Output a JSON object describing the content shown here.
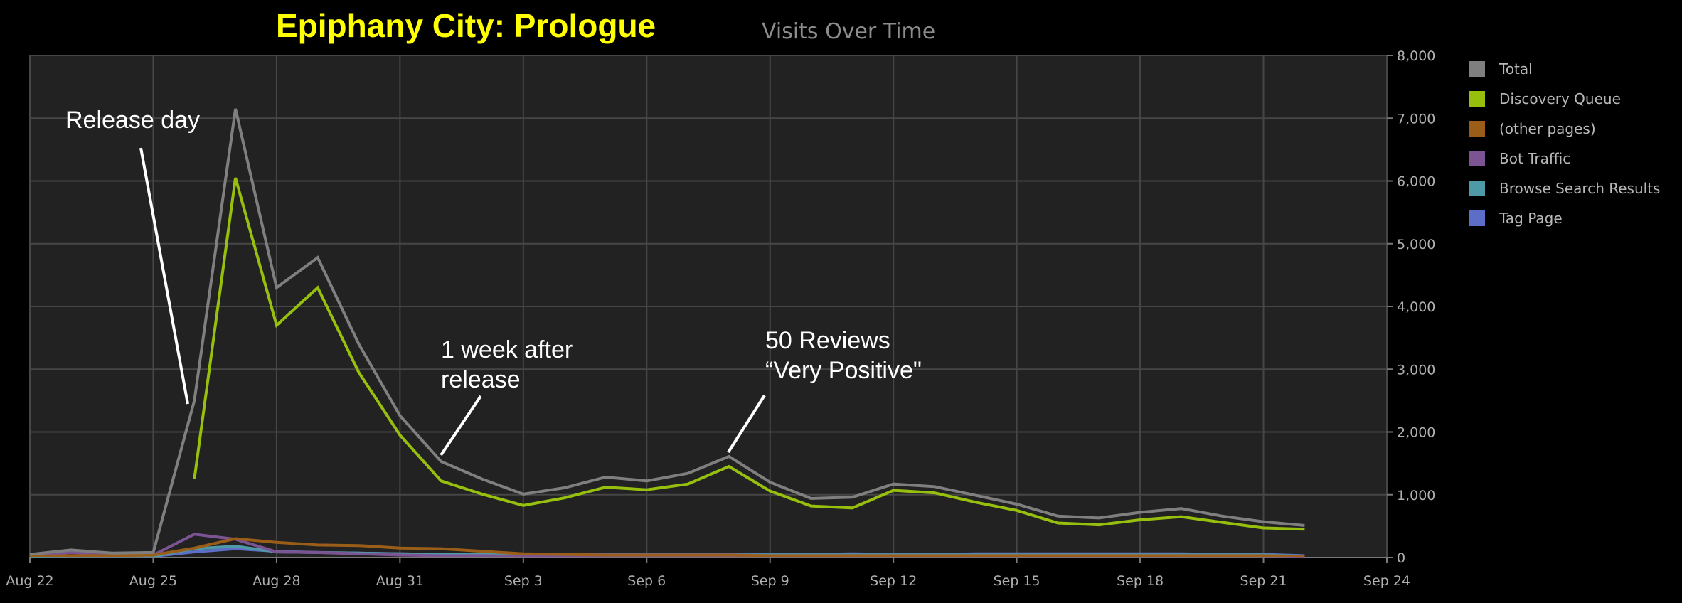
{
  "chart_data": {
    "type": "line",
    "title": "Epiphany City: Prologue",
    "subtitle": "Visits Over Time",
    "xlabel": "",
    "ylabel": "",
    "xlim": [
      "2014-08-22",
      "2014-09-24"
    ],
    "ylim": [
      0,
      8000
    ],
    "x_ticks": [
      "Aug 22",
      "Aug 25",
      "Aug 28",
      "Aug 31",
      "Sep 3",
      "Sep 6",
      "Sep 9",
      "Sep 12",
      "Sep 15",
      "Sep 18",
      "Sep 21",
      "Sep 24"
    ],
    "y_ticks": [
      "0",
      "1,000",
      "2,000",
      "3,000",
      "4,000",
      "5,000",
      "6,000",
      "7,000",
      "8,000"
    ],
    "y_axis_side": "right",
    "grid": true,
    "legend_position": "right",
    "x": [
      "2014-08-22",
      "2014-08-23",
      "2014-08-24",
      "2014-08-25",
      "2014-08-26",
      "2014-08-27",
      "2014-08-28",
      "2014-08-29",
      "2014-08-30",
      "2014-08-31",
      "2014-09-01",
      "2014-09-02",
      "2014-09-03",
      "2014-09-04",
      "2014-09-05",
      "2014-09-06",
      "2014-09-07",
      "2014-09-08",
      "2014-09-09",
      "2014-09-10",
      "2014-09-11",
      "2014-09-12",
      "2014-09-13",
      "2014-09-14",
      "2014-09-15",
      "2014-09-16",
      "2014-09-17",
      "2014-09-18",
      "2014-09-19",
      "2014-09-20",
      "2014-09-21",
      "2014-09-22"
    ],
    "series": [
      {
        "name": "Total",
        "color": "#7f7f7f",
        "values": [
          50,
          120,
          70,
          80,
          2500,
          7150,
          4300,
          4780,
          3400,
          2260,
          1530,
          1250,
          1010,
          1110,
          1280,
          1220,
          1340,
          1610,
          1200,
          940,
          960,
          1170,
          1130,
          990,
          850,
          660,
          630,
          720,
          780,
          660,
          570,
          510
        ]
      },
      {
        "name": "Discovery Queue",
        "color": "#97bf0d",
        "values": [
          null,
          null,
          null,
          null,
          1250,
          6050,
          3700,
          4300,
          2950,
          1950,
          1220,
          1010,
          830,
          950,
          1120,
          1080,
          1170,
          1450,
          1060,
          820,
          790,
          1070,
          1030,
          880,
          750,
          550,
          520,
          600,
          650,
          560,
          470,
          450
        ]
      },
      {
        "name": "(other pages)",
        "color": "#9b5e19",
        "values": [
          20,
          30,
          30,
          40,
          150,
          300,
          240,
          200,
          190,
          150,
          140,
          100,
          60,
          50,
          40,
          40,
          40,
          40,
          30,
          30,
          30,
          30,
          30,
          30,
          30,
          30,
          30,
          30,
          30,
          30,
          30,
          20
        ]
      },
      {
        "name": "Bot Traffic",
        "color": "#7d5493",
        "values": [
          30,
          80,
          50,
          40,
          370,
          290,
          90,
          80,
          60,
          40,
          30,
          30,
          20,
          20,
          20,
          20,
          20,
          20,
          20,
          20,
          20,
          20,
          20,
          20,
          20,
          20,
          20,
          20,
          20,
          20,
          20,
          10
        ]
      },
      {
        "name": "Browse Search Results",
        "color": "#4e9aa6",
        "values": [
          10,
          20,
          20,
          20,
          140,
          180,
          90,
          80,
          70,
          60,
          50,
          50,
          40,
          40,
          40,
          40,
          40,
          40,
          40,
          40,
          40,
          40,
          40,
          40,
          40,
          40,
          40,
          40,
          40,
          40,
          40,
          20
        ]
      },
      {
        "name": "Tag Page",
        "color": "#5c6ec8",
        "values": [
          10,
          20,
          20,
          20,
          90,
          140,
          100,
          80,
          70,
          60,
          50,
          50,
          50,
          50,
          50,
          50,
          50,
          50,
          50,
          50,
          60,
          50,
          50,
          60,
          60,
          60,
          60,
          60,
          60,
          50,
          50,
          30
        ]
      }
    ],
    "annotations": [
      {
        "lines": [
          "Release day"
        ],
        "x": "2014-08-26",
        "y": 2500
      },
      {
        "lines": [
          "1 week after",
          "release"
        ],
        "x": "2014-09-02",
        "y": 1530
      },
      {
        "lines": [
          "50 Reviews",
          "“Very Positive\""
        ],
        "x": "2014-09-08",
        "y": 1610
      }
    ]
  }
}
